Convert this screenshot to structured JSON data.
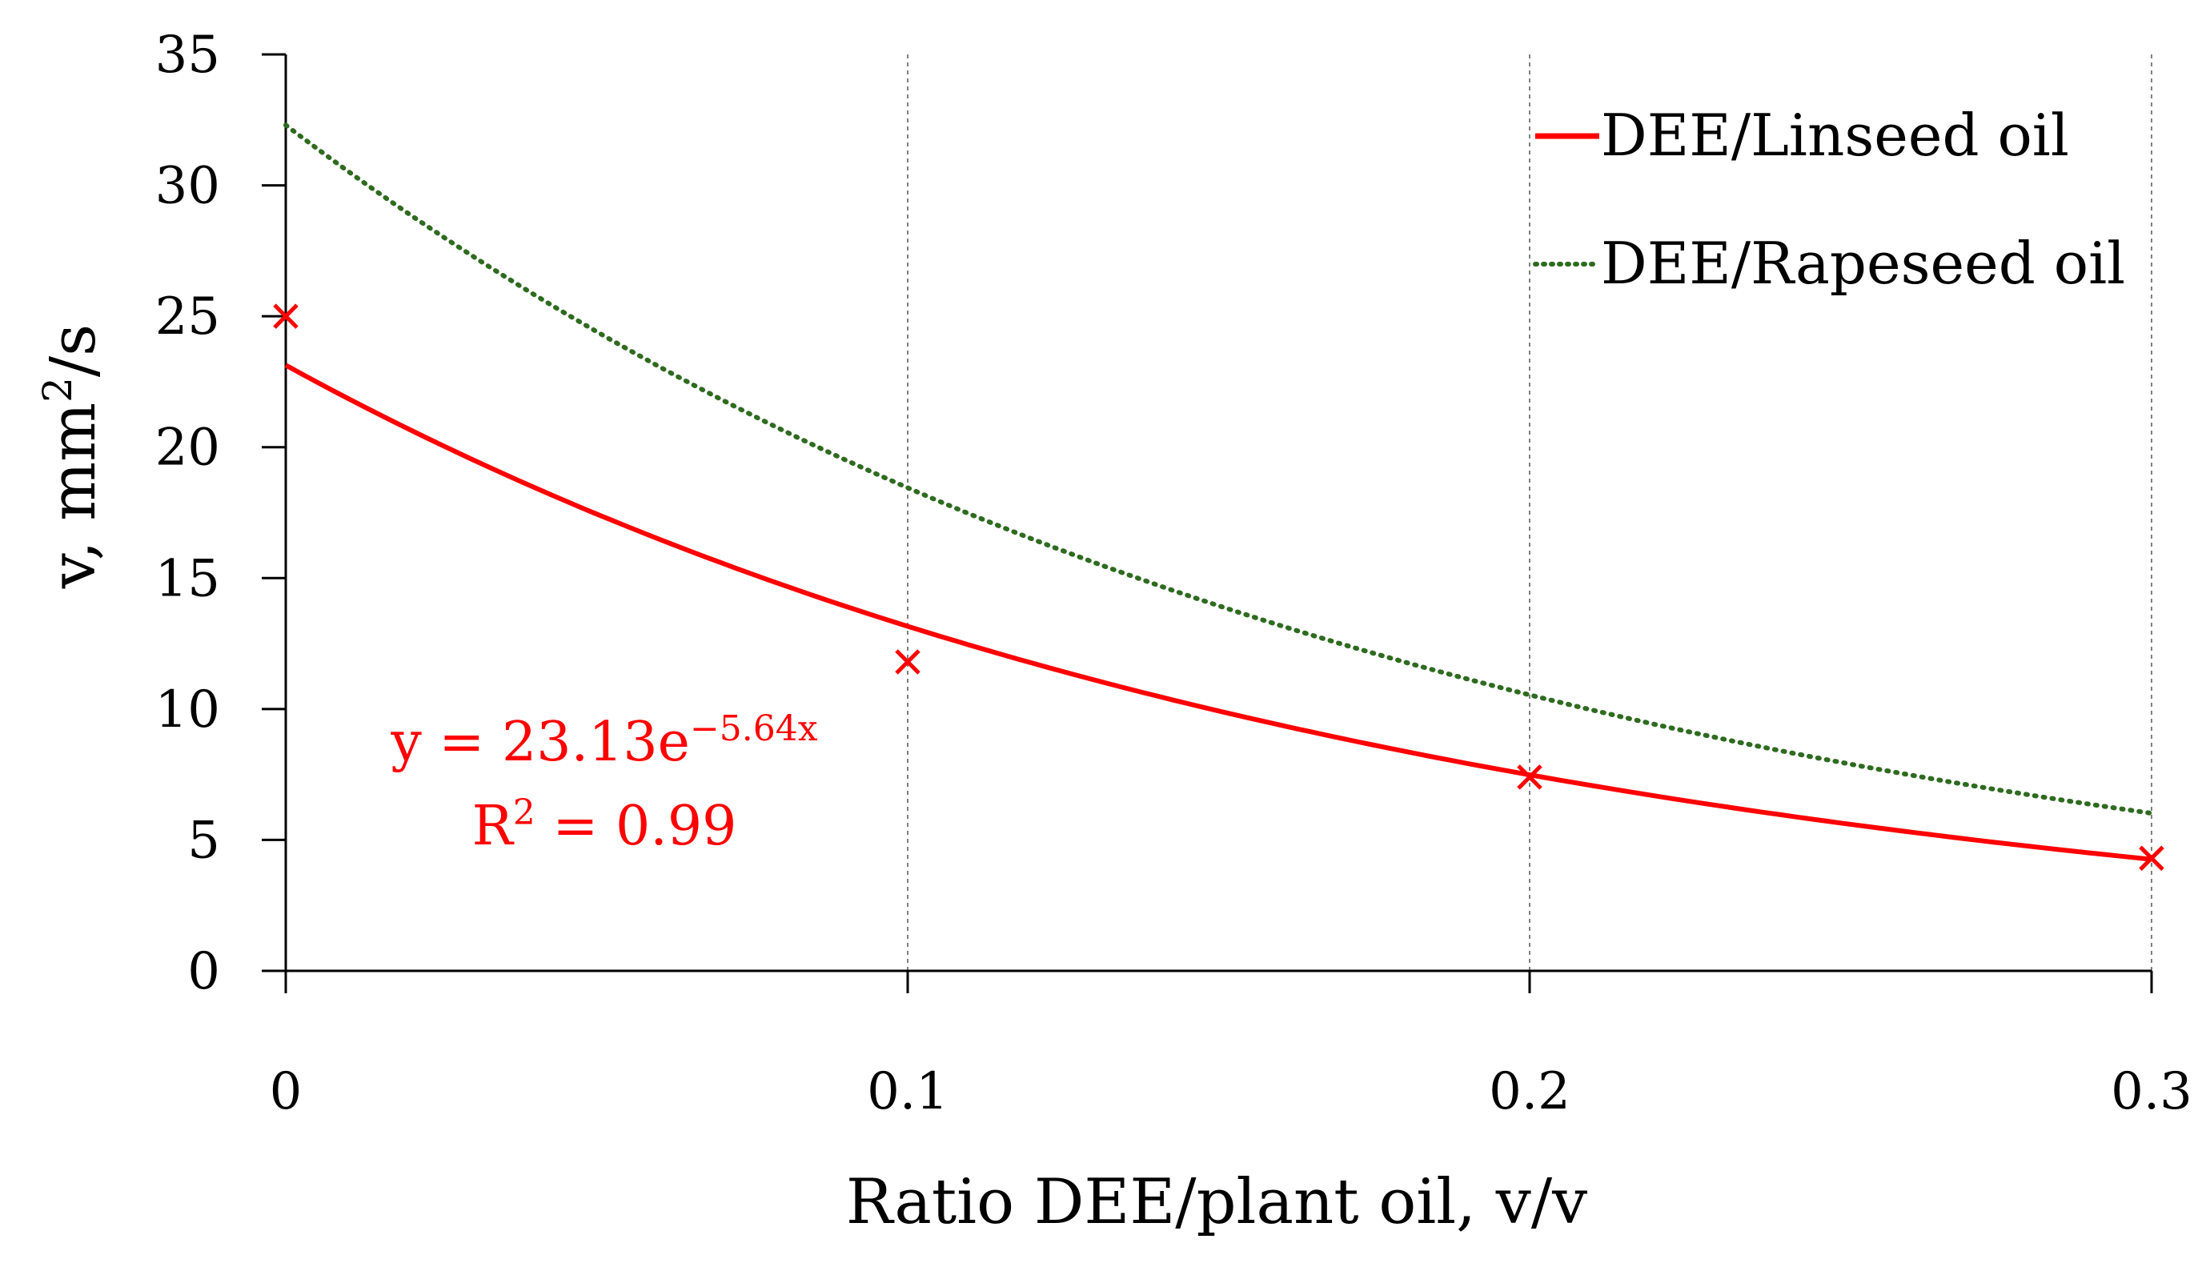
{
  "chart_data": {
    "type": "line",
    "title": "",
    "xlabel": "Ratio DEE/plant oil, v/v",
    "ylabel": {
      "prefix": "v,  mm",
      "sup": "2",
      "suffix": "/s"
    },
    "xlim": [
      0,
      0.3
    ],
    "ylim": [
      0,
      35
    ],
    "x_ticks": [
      0,
      0.1,
      0.2,
      0.3
    ],
    "x_tick_labels": [
      "0",
      "0.1",
      "0.2",
      "0.3"
    ],
    "y_ticks": [
      0,
      5,
      10,
      15,
      20,
      25,
      30,
      35
    ],
    "y_tick_labels": [
      "0",
      "5",
      "10",
      "15",
      "20",
      "25",
      "30",
      "35"
    ],
    "grid": {
      "vertical": true,
      "horizontal": false
    },
    "legend_position": "top-right",
    "series": [
      {
        "name": "DEE/Linseed oil",
        "color": "#ff0000",
        "style": "solid",
        "kind": "exponential-fit",
        "a": 23.13,
        "b": -5.64,
        "markers": {
          "x": [
            0,
            0.1,
            0.2,
            0.3
          ],
          "y": [
            25.0,
            11.8,
            7.4,
            4.3
          ]
        }
      },
      {
        "name": "DEE/Rapeseed oil",
        "color": "#2e6b1f",
        "style": "dotted",
        "kind": "exponential-fit",
        "a": 32.3,
        "b": -5.6
      }
    ],
    "annotations": {
      "equation": {
        "prefix": "y = 23.13e",
        "exp": "−5.64x",
        "color": "#ff0000"
      },
      "r2": {
        "prefix": "R",
        "sup": "2",
        "suffix": " = 0.99",
        "color": "#ff0000"
      }
    }
  }
}
